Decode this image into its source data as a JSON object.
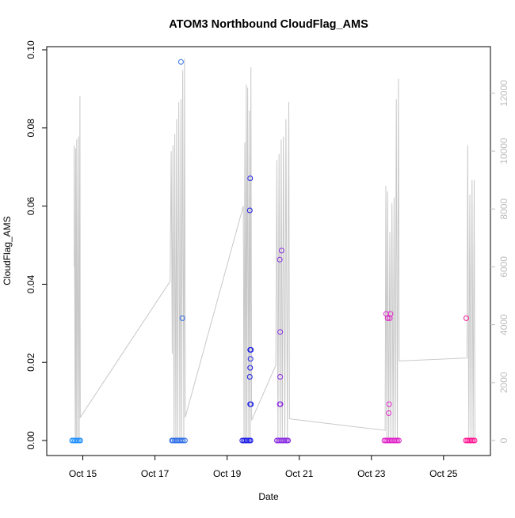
{
  "chart_data": {
    "type": "scatter",
    "title": "ATOM3 Northbound CloudFlag_AMS",
    "xlabel": "Date",
    "ylabel": "CloudFlag_AMS",
    "ylim": [
      0.0,
      0.1
    ],
    "y_ticks": [
      "0.00",
      "0.02",
      "0.04",
      "0.06",
      "0.08",
      "0.10"
    ],
    "x_ticks": [
      "Oct 15",
      "Oct 17",
      "Oct 19",
      "Oct 21",
      "Oct 23",
      "Oct 25"
    ],
    "x_tick_days": [
      15,
      17,
      19,
      21,
      23,
      25
    ],
    "xlim_days": [
      14.0,
      26.3
    ],
    "secondary_axis": {
      "ylim": [
        0,
        13500
      ],
      "ticks": [
        "0",
        "2000",
        "4000",
        "6000",
        "8000",
        "10000",
        "12000"
      ],
      "color": "#bebebe"
    },
    "altitude_series_color": "#c8c8c8",
    "altitude": [
      [
        14.76,
        6000
      ],
      [
        14.76,
        10200
      ],
      [
        14.79,
        0
      ],
      [
        14.8,
        10100
      ],
      [
        14.82,
        0
      ],
      [
        14.83,
        10400
      ],
      [
        14.86,
        0
      ],
      [
        14.88,
        10500
      ],
      [
        14.9,
        0
      ],
      [
        14.92,
        11900
      ],
      [
        14.93,
        800
      ],
      [
        17.42,
        5500
      ],
      [
        17.45,
        10000
      ],
      [
        17.48,
        3000
      ],
      [
        17.5,
        10200
      ],
      [
        17.53,
        0
      ],
      [
        17.55,
        10600
      ],
      [
        17.58,
        0
      ],
      [
        17.6,
        11100
      ],
      [
        17.63,
        0
      ],
      [
        17.66,
        11700
      ],
      [
        17.69,
        0
      ],
      [
        17.72,
        11800
      ],
      [
        17.74,
        0
      ],
      [
        17.77,
        12800
      ],
      [
        17.8,
        0
      ],
      [
        17.82,
        13200
      ],
      [
        17.84,
        800
      ],
      [
        19.45,
        8100
      ],
      [
        19.47,
        0
      ],
      [
        19.49,
        10300
      ],
      [
        19.51,
        0
      ],
      [
        19.53,
        12300
      ],
      [
        19.55,
        0
      ],
      [
        19.57,
        12200
      ],
      [
        19.6,
        0
      ],
      [
        19.62,
        11400
      ],
      [
        19.64,
        0
      ],
      [
        19.66,
        12900
      ],
      [
        19.68,
        700
      ],
      [
        20.35,
        2600
      ],
      [
        20.38,
        9700
      ],
      [
        20.41,
        0
      ],
      [
        20.44,
        9900
      ],
      [
        20.47,
        0
      ],
      [
        20.5,
        10400
      ],
      [
        20.53,
        0
      ],
      [
        20.56,
        10500
      ],
      [
        20.6,
        0
      ],
      [
        20.63,
        11100
      ],
      [
        20.67,
        0
      ],
      [
        20.71,
        11700
      ],
      [
        20.73,
        750
      ],
      [
        23.38,
        350
      ],
      [
        23.4,
        8800
      ],
      [
        23.43,
        0
      ],
      [
        23.45,
        8600
      ],
      [
        23.48,
        0
      ],
      [
        23.51,
        7200
      ],
      [
        23.54,
        0
      ],
      [
        23.57,
        8200
      ],
      [
        23.6,
        0
      ],
      [
        23.63,
        8400
      ],
      [
        23.66,
        0
      ],
      [
        23.69,
        11800
      ],
      [
        23.72,
        0
      ],
      [
        23.75,
        12500
      ],
      [
        23.77,
        2750
      ],
      [
        25.65,
        2850
      ],
      [
        25.67,
        10200
      ],
      [
        25.7,
        0
      ],
      [
        25.73,
        8500
      ],
      [
        25.76,
        0
      ],
      [
        25.79,
        9000
      ],
      [
        25.82,
        0
      ],
      [
        25.85,
        9000
      ],
      [
        25.87,
        0
      ]
    ],
    "series": [
      {
        "color": "#1e90ff",
        "points": [
          [
            14.7,
            0
          ],
          [
            14.74,
            0
          ],
          [
            14.78,
            0
          ],
          [
            14.82,
            0
          ],
          [
            14.86,
            0
          ],
          [
            14.9,
            0
          ],
          [
            14.93,
            0
          ]
        ]
      },
      {
        "color": "#2f6fe8",
        "points": [
          [
            17.47,
            0
          ],
          [
            17.5,
            0
          ],
          [
            17.54,
            0
          ],
          [
            17.58,
            0
          ],
          [
            17.62,
            0
          ],
          [
            17.66,
            0
          ],
          [
            17.7,
            0
          ],
          [
            17.74,
            0
          ],
          [
            17.78,
            0
          ],
          [
            17.83,
            0
          ],
          [
            17.72,
            0.0969
          ],
          [
            17.76,
            0.0313
          ]
        ]
      },
      {
        "color": "#1f1fe8",
        "points": [
          [
            19.42,
            0
          ],
          [
            19.46,
            0
          ],
          [
            19.5,
            0
          ],
          [
            19.54,
            0
          ],
          [
            19.58,
            0
          ],
          [
            19.62,
            0
          ],
          [
            19.65,
            0
          ],
          [
            19.64,
            0.0671
          ],
          [
            19.63,
            0.0589
          ],
          [
            19.64,
            0.0232
          ],
          [
            19.66,
            0.0232
          ],
          [
            19.65,
            0.0209
          ],
          [
            19.64,
            0.0186
          ],
          [
            19.63,
            0.0163
          ],
          [
            19.64,
            0.0093
          ],
          [
            19.66,
            0.0093
          ]
        ]
      },
      {
        "color": "#8a2be2",
        "points": [
          [
            20.38,
            0
          ],
          [
            20.42,
            0
          ],
          [
            20.46,
            0
          ],
          [
            20.5,
            0
          ],
          [
            20.54,
            0
          ],
          [
            20.58,
            0
          ],
          [
            20.62,
            0
          ],
          [
            20.66,
            0
          ],
          [
            20.69,
            0
          ],
          [
            20.51,
            0.0486
          ],
          [
            20.46,
            0.0463
          ],
          [
            20.47,
            0.0278
          ],
          [
            20.47,
            0.0163
          ],
          [
            20.46,
            0.0093
          ],
          [
            20.48,
            0.0093
          ]
        ]
      },
      {
        "color": "#e020c8",
        "points": [
          [
            23.36,
            0
          ],
          [
            23.4,
            0
          ],
          [
            23.44,
            0
          ],
          [
            23.48,
            0
          ],
          [
            23.52,
            0
          ],
          [
            23.56,
            0
          ],
          [
            23.6,
            0
          ],
          [
            23.64,
            0
          ],
          [
            23.68,
            0
          ],
          [
            23.72,
            0
          ],
          [
            23.76,
            0
          ],
          [
            23.41,
            0.0324
          ],
          [
            23.45,
            0.0313
          ],
          [
            23.53,
            0.0324
          ],
          [
            23.51,
            0.0313
          ],
          [
            23.49,
            0.0093
          ],
          [
            23.48,
            0.007
          ]
        ]
      },
      {
        "color": "#ff1493",
        "points": [
          [
            25.62,
            0
          ],
          [
            25.66,
            0
          ],
          [
            25.7,
            0
          ],
          [
            25.74,
            0
          ],
          [
            25.78,
            0
          ],
          [
            25.82,
            0
          ],
          [
            25.86,
            0
          ],
          [
            25.63,
            0.0313
          ]
        ]
      }
    ]
  }
}
